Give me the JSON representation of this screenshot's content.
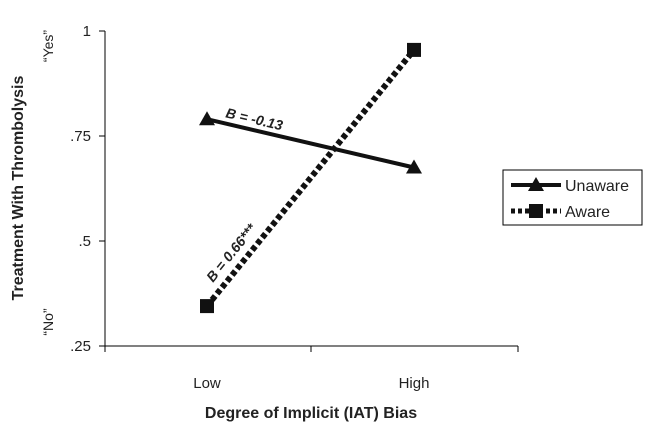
{
  "chart_data": {
    "type": "line",
    "title": "",
    "xlabel": "Degree of Implicit (IAT) Bias",
    "ylabel": "Treatment With Thrombolysis",
    "categories": [
      "Low",
      "High"
    ],
    "ylim": [
      0.25,
      1
    ],
    "yticks": [
      {
        "value": 1,
        "label": "1"
      },
      {
        "value": 0.75,
        "label": ".75"
      },
      {
        "value": 0.5,
        "label": ".5"
      },
      {
        "value": 0.25,
        "label": ".25"
      }
    ],
    "y_end_labels": {
      "top": "“Yes”",
      "bottom": "“No”"
    },
    "grid": false,
    "legend_position": "right",
    "series": [
      {
        "name": "Unaware",
        "values": [
          0.79,
          0.675
        ],
        "style": "solid",
        "marker": "triangle",
        "annotation": "B = -0.13"
      },
      {
        "name": "Aware",
        "values": [
          0.345,
          0.955
        ],
        "style": "dotted",
        "marker": "square",
        "annotation": "B = 0.66***"
      }
    ],
    "colors": {
      "line": "#111111",
      "axis": "#000000"
    }
  }
}
